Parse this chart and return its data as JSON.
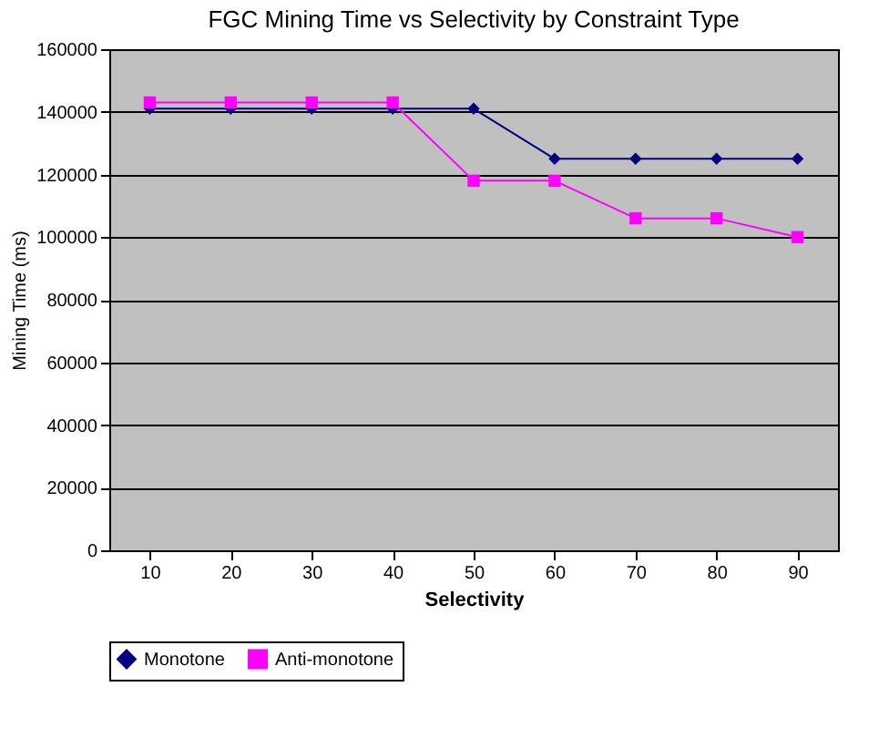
{
  "chart_data": {
    "type": "line",
    "title": "FGC Mining Time vs Selectivity by Constraint Type",
    "xlabel": "Selectivity",
    "ylabel": "Mining Time (ms)",
    "categories": [
      "10",
      "20",
      "30",
      "40",
      "50",
      "60",
      "70",
      "80",
      "90"
    ],
    "series": [
      {
        "name": "Monotone",
        "color": "#000080",
        "marker": "diamond",
        "values": [
          141000,
          141000,
          141000,
          141000,
          141000,
          125000,
          125000,
          125000,
          125000
        ]
      },
      {
        "name": "Anti-monotone",
        "color": "#ff00ff",
        "marker": "square",
        "values": [
          143000,
          143000,
          143000,
          143000,
          118000,
          118000,
          106000,
          106000,
          100000
        ]
      }
    ],
    "ylim": [
      0,
      160000
    ],
    "yticks": [
      0,
      20000,
      40000,
      60000,
      80000,
      100000,
      120000,
      140000,
      160000
    ],
    "grid": "y",
    "legend": "bottom",
    "line_style": "solid"
  }
}
